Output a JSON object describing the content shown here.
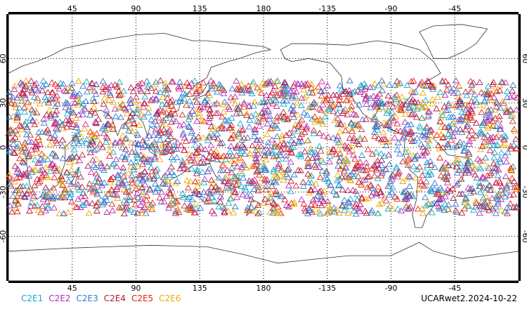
{
  "chart_data": {
    "type": "scatter",
    "projection": "equirectangular, Pacific-centered",
    "lon_range": [
      0,
      360
    ],
    "lat_range": [
      -90,
      90
    ],
    "grid": "dotted",
    "x_ticks": [
      "45",
      "90",
      "135",
      "180",
      "-135",
      "-90",
      "-45"
    ],
    "y_ticks_left": [
      "60",
      "30",
      "0",
      "-30",
      "-60"
    ],
    "y_ticks_right": [
      "60",
      "30",
      "0",
      "-30",
      "-60"
    ],
    "marker": "open-triangle",
    "coverage_lat_range": [
      -45,
      45
    ],
    "series": [
      {
        "name": "C2E1",
        "color": "#17a8c8"
      },
      {
        "name": "C2E2",
        "color": "#b52cb5"
      },
      {
        "name": "C2E3",
        "color": "#2a7bd6"
      },
      {
        "name": "C2E4",
        "color": "#b01a3a"
      },
      {
        "name": "C2E5",
        "color": "#e0201e"
      },
      {
        "name": "C2E6",
        "color": "#f0a800"
      }
    ]
  },
  "footer": {
    "stamp": "UCARwet2.2024-10-22"
  }
}
